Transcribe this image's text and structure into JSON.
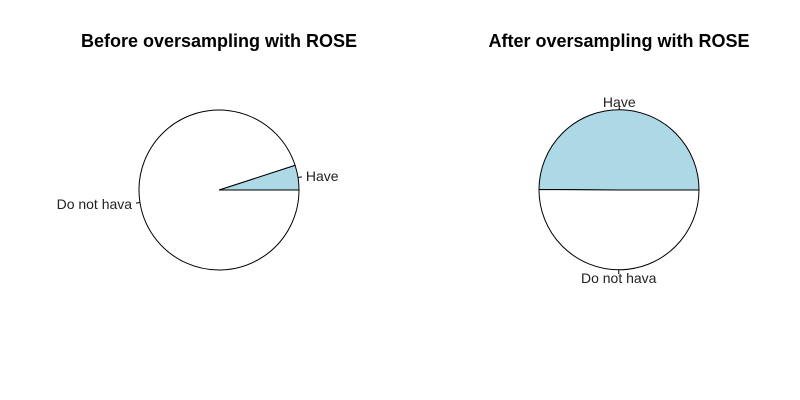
{
  "chart_data": [
    {
      "type": "pie",
      "title": "Before oversampling with ROSE",
      "slices": [
        {
          "label": "Have",
          "value": 0.05,
          "color": "#add8e6"
        },
        {
          "label": "Do not hava",
          "value": 0.95,
          "color": "#ffffff"
        }
      ]
    },
    {
      "type": "pie",
      "title": "After oversampling with ROSE",
      "slices": [
        {
          "label": "Have",
          "value": 0.499,
          "color": "#add8e6"
        },
        {
          "label": "Do not hava",
          "value": 0.501,
          "color": "#ffffff"
        }
      ]
    }
  ]
}
